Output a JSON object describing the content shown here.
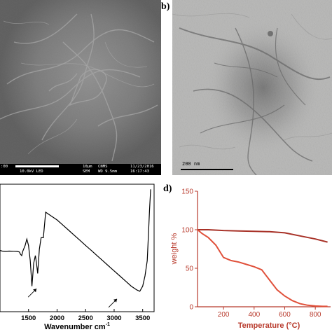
{
  "panels": {
    "a": {
      "label": "",
      "sem_info": {
        "time_left": ":00",
        "voltage": "10.0kV LED",
        "scale": "10μm",
        "lab": "CNMS",
        "mode": "SEM",
        "wd": "WD 9.5mm",
        "date": "11/23/2016",
        "time": "16:17:43"
      }
    },
    "b": {
      "label": "b)",
      "scale_label": "200 nm"
    },
    "c": {
      "label": "",
      "chart_data": {
        "type": "line",
        "title": "",
        "xlabel": "Wavenumber cm",
        "xlabel_sup": "-1",
        "ylabel": "",
        "xlim": [
          1000,
          3700
        ],
        "ylim": [
          0,
          100
        ],
        "x_ticks": [
          1000,
          1500,
          2000,
          2500,
          3000,
          3500
        ],
        "x_tick_labels": [
          "",
          "1500",
          "2000",
          "2500",
          "3000",
          "3500"
        ],
        "series": [
          {
            "x": [
              1000,
              1040,
              1100,
              1160,
              1240,
              1300,
              1340,
              1360,
              1380,
              1400,
              1440,
              1470,
              1500,
              1530,
              1560,
              1590,
              1620,
              1640,
              1660,
              1690,
              1720,
              1760,
              1800,
              1900,
              2000,
              2100,
              2200,
              2300,
              2400,
              2500,
              2600,
              2700,
              2800,
              2900,
              3000,
              3100,
              3200,
              3300,
              3400,
              3450,
              3500,
              3540,
              3580,
              3600,
              3620,
              3640
            ],
            "y": [
              48,
              47.5,
              47.3,
              47.5,
              47.4,
              47.3,
              46.8,
              45,
              44,
              47.5,
              52,
              57,
              52,
              40,
              20,
              38,
              44,
              38,
              30,
              49,
              58,
              58,
              78,
              75,
              72,
              68,
              64,
              60,
              56,
              52,
              48,
              44,
              40,
              36,
              32,
              28,
              24,
              20,
              17,
              16,
              20,
              28,
              40,
              60,
              80,
              96
            ]
          }
        ],
        "arrows": [
          {
            "x": 1640,
            "y": 18
          },
          {
            "x": 3050,
            "y": 10
          }
        ]
      }
    },
    "d": {
      "label": "d)",
      "chart_data": {
        "type": "line",
        "title": "",
        "xlabel": "Temperature (°C)",
        "ylabel": "weight %",
        "xlim": [
          30,
          900
        ],
        "ylim": [
          0,
          150
        ],
        "x_ticks": [
          200,
          400,
          600,
          800
        ],
        "y_ticks": [
          0,
          50,
          100,
          150
        ],
        "series": [
          {
            "color": "#a83228",
            "x": [
              30,
              100,
              200,
              300,
              400,
              500,
              600,
              700,
              800,
              880
            ],
            "y": [
              100,
              100,
              99,
              98.5,
              98,
              97.5,
              96,
              92,
              88,
              84
            ]
          },
          {
            "color": "#e0503a",
            "x": [
              30,
              60,
              100,
              150,
              200,
              250,
              300,
              350,
              400,
              450,
              500,
              550,
              600,
              650,
              700,
              750,
              800,
              850,
              880
            ],
            "y": [
              100,
              95,
              90,
              80,
              64,
              60,
              58,
              55,
              52,
              48,
              35,
              22,
              14,
              8,
              4,
              2,
              1,
              0.5,
              0.5
            ]
          }
        ],
        "colors": {
          "axis": "#b83a2c",
          "text": "#b83a2c"
        }
      }
    }
  }
}
